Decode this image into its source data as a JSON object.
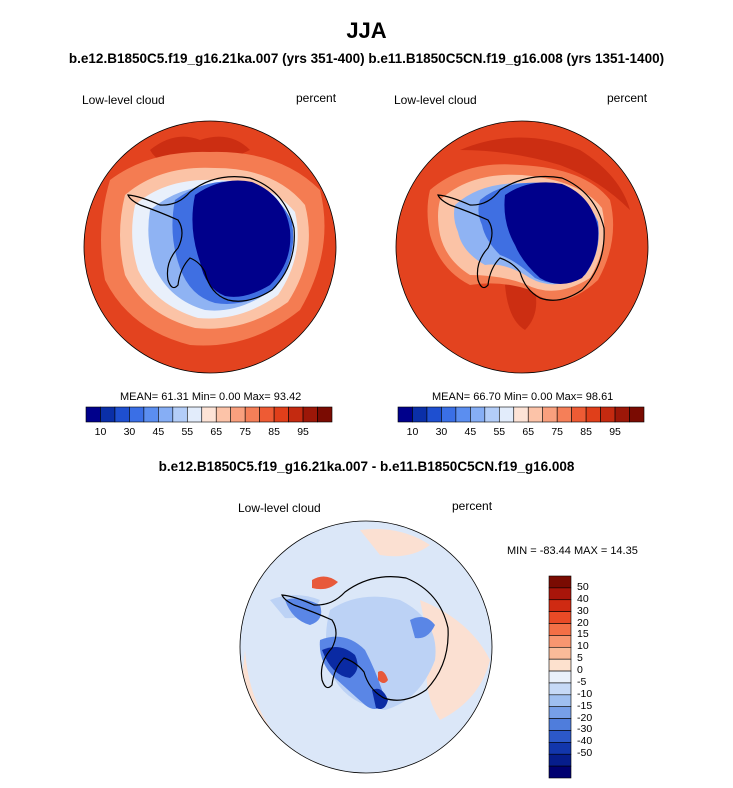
{
  "title": "JJA",
  "subtitle": "b.e12.B1850C5.f19_g16.21ka.007 (yrs 351-400) b.e11.B1850C5CN.f19_g16.008 (yrs 1351-1400)",
  "diff_title": "b.e12.B1850C5.f19_g16.21ka.007 - b.e11.B1850C5CN.f19_g16.008",
  "panels": [
    {
      "variable": "Low-level cloud",
      "units": "percent",
      "stats": "MEAN= 61.31 Min=  0.00 Max= 93.42"
    },
    {
      "variable": "Low-level cloud",
      "units": "percent",
      "stats": "MEAN= 66.70 Min=  0.00 Max= 98.61"
    },
    {
      "variable": "Low-level cloud",
      "units": "percent",
      "stats": "MIN = -83.44 MAX =  14.35"
    }
  ],
  "colorbar_main": {
    "colors": [
      "#00008b",
      "#0a2fa8",
      "#1e4fd0",
      "#3a6fe6",
      "#5b8ef0",
      "#86aef5",
      "#b3cdf8",
      "#e2ecfb",
      "#fde3d6",
      "#fcc3a8",
      "#f9a07e",
      "#f57f58",
      "#ee5b34",
      "#e03f1a",
      "#c42a10",
      "#9c1708",
      "#7a0b02"
    ],
    "labels": [
      "10",
      "30",
      "45",
      "55",
      "65",
      "75",
      "85",
      "95"
    ]
  },
  "colorbar_diff": {
    "colors": [
      "#7a0b02",
      "#a8150a",
      "#cf2a12",
      "#ea4a26",
      "#f46f46",
      "#f89670",
      "#fabb99",
      "#fde1ce",
      "#eaf1fb",
      "#c6d9f6",
      "#9fbff0",
      "#779fe8",
      "#4f7ddc",
      "#2c58c9",
      "#1236ac",
      "#061d8c",
      "#000070"
    ],
    "labels": [
      "50",
      "40",
      "30",
      "20",
      "15",
      "10",
      "5",
      "0",
      "-5",
      "-10",
      "-15",
      "-20",
      "-30",
      "-40",
      "-50"
    ]
  },
  "map_colors": {
    "high": "#e3431f",
    "higher": "#cc2e12",
    "mid": "#f47c52",
    "light": "#fbc3a6",
    "pale": "#e9f0fb",
    "blue1": "#8fb3f3",
    "blue2": "#3f6fe2",
    "blue3": "#1436b4",
    "deep": "#00008b",
    "diff_bg": "#dbe7f8",
    "diff_pink": "#fbe0d2",
    "diff_light": "#bcd2f5",
    "diff_mid": "#5a86e6",
    "diff_deep": "#0a2aa3",
    "diff_red": "#e8593a",
    "coast": "#000000"
  }
}
